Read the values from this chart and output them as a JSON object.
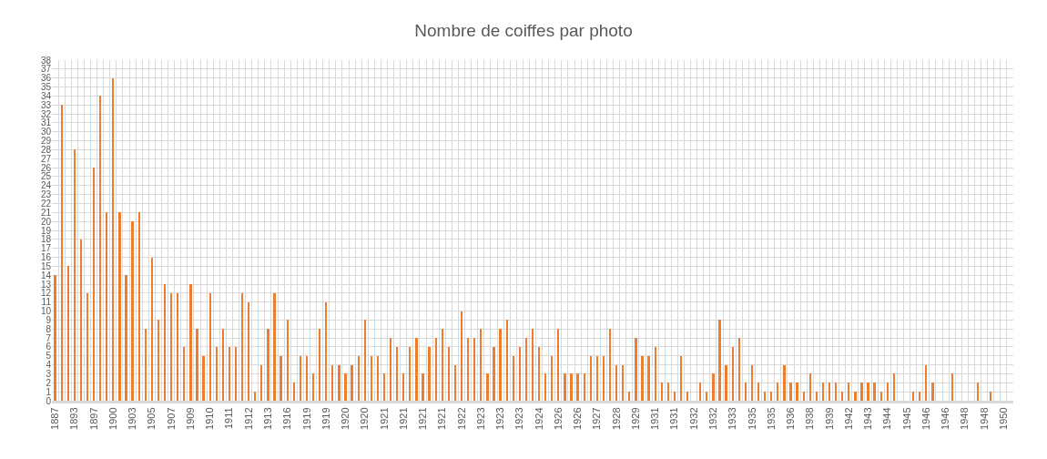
{
  "chart_data": {
    "type": "bar",
    "title": "Nombre de coiffes par photo",
    "categories": [
      "1887",
      null,
      null,
      "1893",
      null,
      null,
      "1897",
      null,
      null,
      "1900",
      null,
      null,
      "1903",
      null,
      null,
      "1905",
      null,
      null,
      "1907",
      null,
      null,
      "1909",
      null,
      null,
      "1910",
      null,
      null,
      "1911",
      null,
      null,
      "1912",
      null,
      null,
      "1913",
      null,
      null,
      "1916",
      null,
      null,
      "1919",
      null,
      null,
      "1919",
      null,
      null,
      "1920",
      null,
      null,
      "1920",
      null,
      null,
      "1921",
      null,
      null,
      "1921",
      null,
      null,
      "1921",
      null,
      null,
      "1921",
      null,
      null,
      "1922",
      null,
      null,
      "1923",
      null,
      null,
      "1923",
      null,
      null,
      "1923",
      null,
      null,
      "1924",
      null,
      null,
      "1926",
      null,
      null,
      "1926",
      null,
      null,
      "1927",
      null,
      null,
      "1928",
      null,
      null,
      "1929",
      null,
      null,
      "1931",
      null,
      null,
      "1931",
      null,
      null,
      "1932",
      null,
      null,
      "1932",
      null,
      null,
      "1933",
      null,
      null,
      "1935",
      null,
      null,
      "1935",
      null,
      null,
      "1936",
      null,
      null,
      "1938",
      null,
      null,
      "1939",
      null,
      null,
      "1942",
      null,
      null,
      "1943",
      null,
      null,
      "1944",
      null,
      null,
      "1945",
      null,
      null,
      "1946",
      null,
      null,
      "1946",
      null,
      null,
      "1948",
      null,
      null,
      "1948",
      null,
      null,
      "1950",
      null
    ],
    "values": [
      14,
      33,
      15,
      28,
      18,
      12,
      26,
      34,
      21,
      36,
      21,
      14,
      20,
      21,
      8,
      16,
      9,
      13,
      12,
      12,
      6,
      13,
      8,
      5,
      12,
      6,
      8,
      6,
      6,
      12,
      11,
      1,
      4,
      8,
      12,
      5,
      9,
      2,
      5,
      5,
      3,
      8,
      11,
      4,
      4,
      3,
      4,
      5,
      9,
      5,
      5,
      3,
      7,
      6,
      3,
      6,
      7,
      3,
      6,
      7,
      8,
      6,
      4,
      10,
      7,
      7,
      8,
      3,
      6,
      8,
      9,
      5,
      6,
      7,
      8,
      6,
      3,
      5,
      8,
      3,
      3,
      3,
      3,
      5,
      5,
      5,
      8,
      4,
      4,
      1,
      7,
      5,
      5,
      6,
      2,
      2,
      1,
      5,
      1,
      null,
      2,
      1,
      3,
      9,
      4,
      6,
      7,
      2,
      4,
      2,
      1,
      1,
      2,
      4,
      2,
      2,
      1,
      3,
      1,
      2,
      2,
      2,
      1,
      2,
      1,
      2,
      2,
      2,
      1,
      2,
      3,
      null,
      null,
      1,
      1,
      4,
      2,
      null,
      null,
      3,
      null,
      null,
      null,
      2,
      null,
      1,
      null,
      null,
      null
    ],
    "color": "#ed7d31",
    "ylim": [
      0,
      38
    ],
    "yticks": [
      0,
      1,
      2,
      3,
      4,
      5,
      6,
      7,
      8,
      9,
      10,
      11,
      12,
      13,
      14,
      15,
      16,
      17,
      18,
      19,
      20,
      21,
      22,
      23,
      24,
      25,
      26,
      27,
      28,
      29,
      30,
      31,
      32,
      33,
      34,
      35,
      36,
      37,
      38
    ],
    "grid": true
  }
}
